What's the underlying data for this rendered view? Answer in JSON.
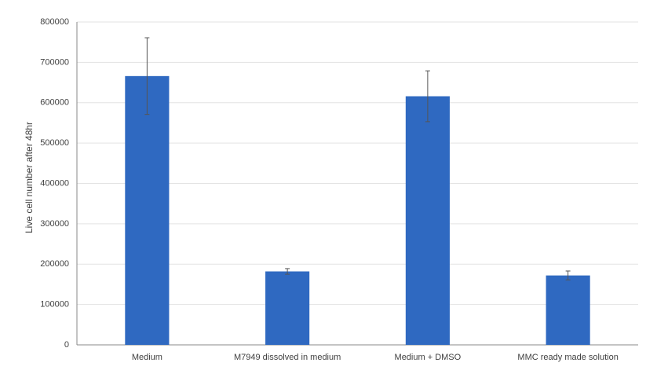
{
  "chart_data": {
    "type": "bar",
    "y_label": "Live cell number after 48hr",
    "categories": [
      "Medium",
      "M7949 dissolved in medium",
      "Medium + DMSO",
      "MMC ready made solution"
    ],
    "values": [
      666000,
      182000,
      616000,
      172000
    ],
    "errors": [
      95000,
      7000,
      63000,
      11000
    ],
    "color": "#2f69c1",
    "ylim": [
      0,
      800000
    ],
    "yticks": [
      0,
      100000,
      200000,
      300000,
      400000,
      500000,
      600000,
      700000,
      800000
    ],
    "grid": true
  }
}
